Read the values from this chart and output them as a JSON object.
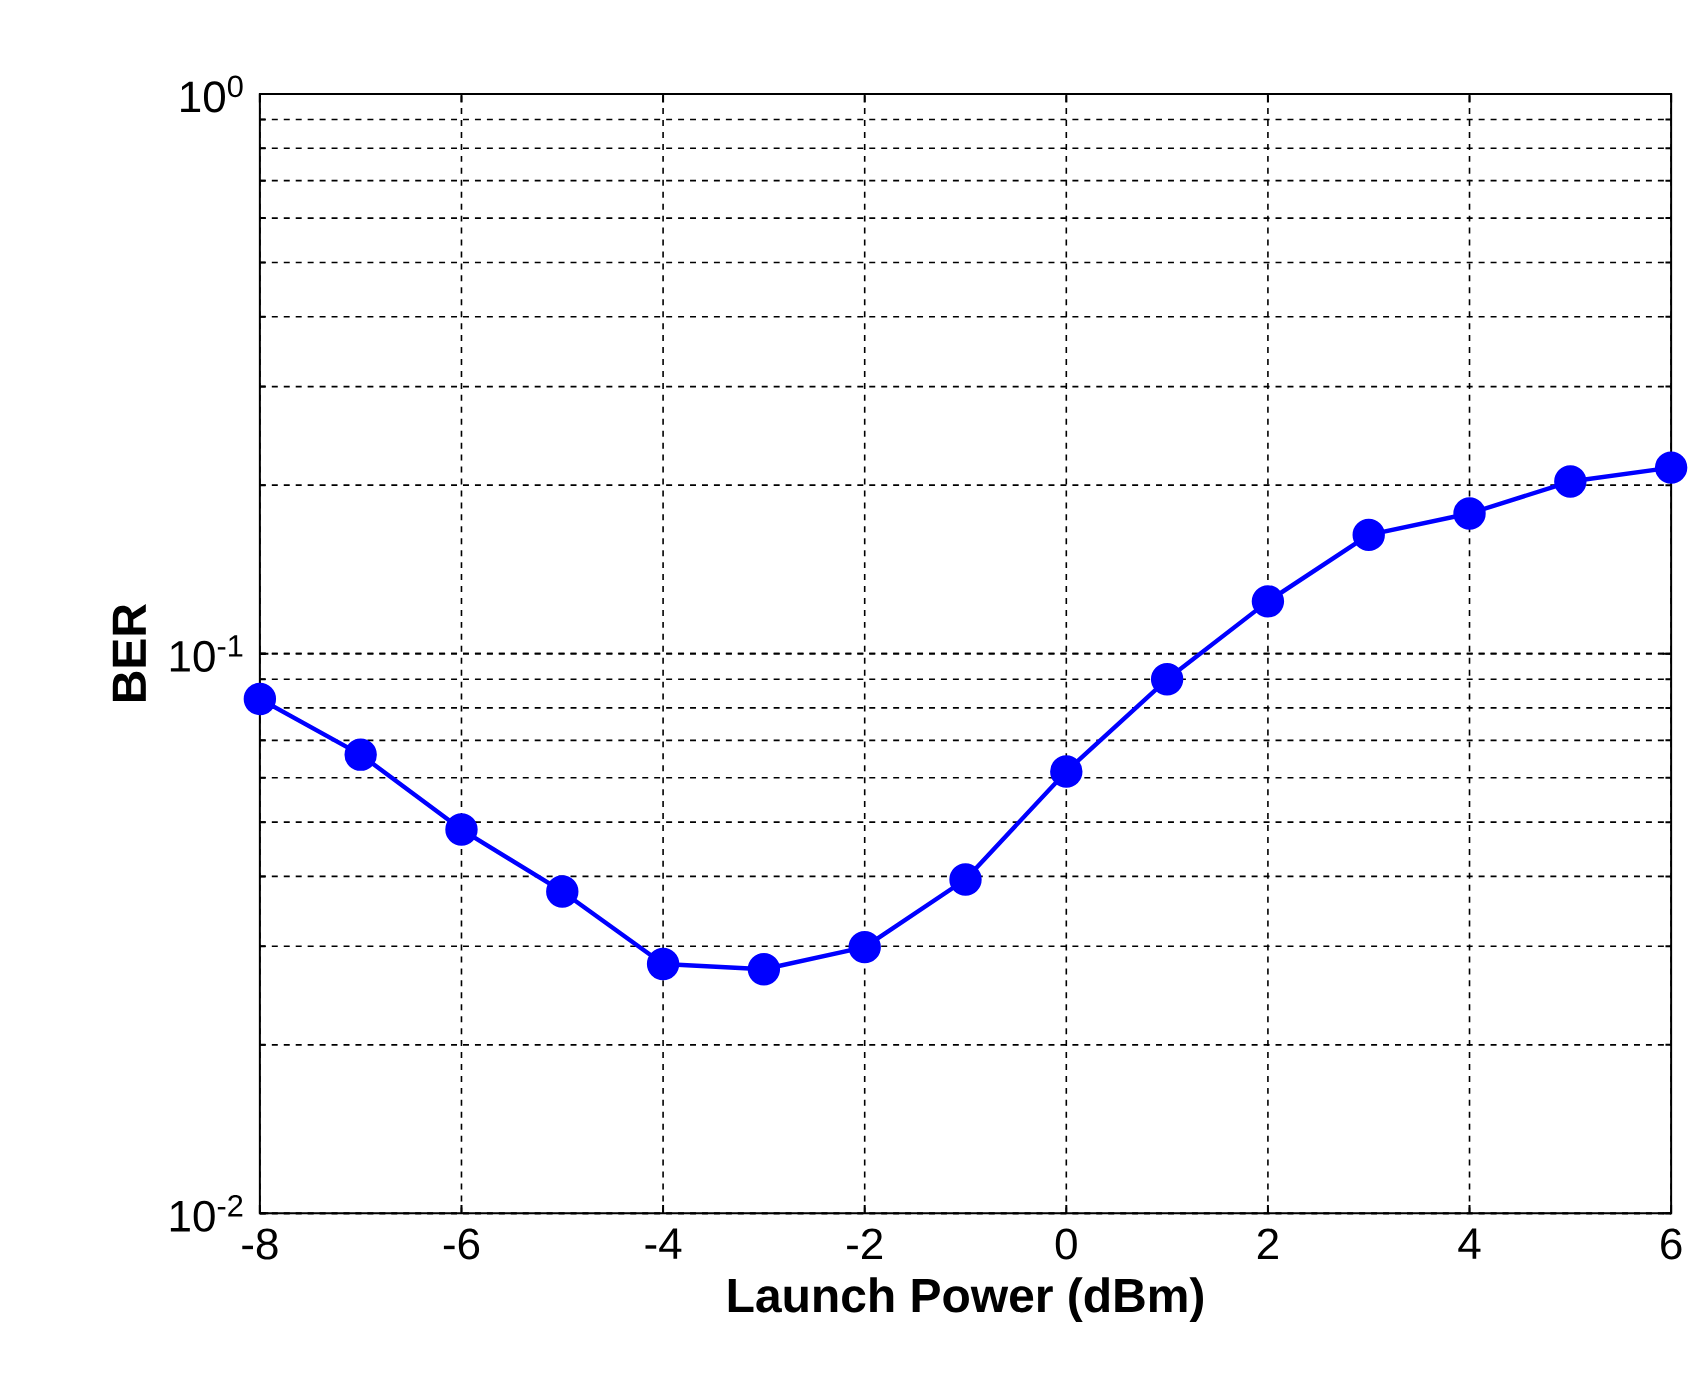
{
  "chart_data": {
    "type": "line",
    "xlabel": "Launch Power (dBm)",
    "ylabel": "BER",
    "x": [
      -8,
      -7,
      -6,
      -5,
      -4,
      -3,
      -2,
      -1,
      0,
      1,
      2,
      3,
      4,
      5,
      6
    ],
    "series": [
      {
        "color": "#0000ff",
        "values": [
          0.083,
          0.066,
          0.0485,
          0.0376,
          0.0279,
          0.0273,
          0.0299,
          0.0395,
          0.0616,
          0.09,
          0.124,
          0.163,
          0.178,
          0.203,
          0.215
        ]
      }
    ],
    "xlim": [
      -8,
      6
    ],
    "ylim": [
      0.01,
      1
    ],
    "xticks": [
      -8,
      -6,
      -4,
      -2,
      0,
      2,
      4,
      6
    ],
    "yticks": [
      {
        "value": 0.01,
        "label": "10$^{-2}$"
      },
      {
        "value": 0.1,
        "label": "10$^{-1}$"
      },
      {
        "value": 1,
        "label": "10$^{0}$"
      }
    ],
    "log": "y",
    "grid": true,
    "marker": "circle",
    "line_style": "solid"
  }
}
